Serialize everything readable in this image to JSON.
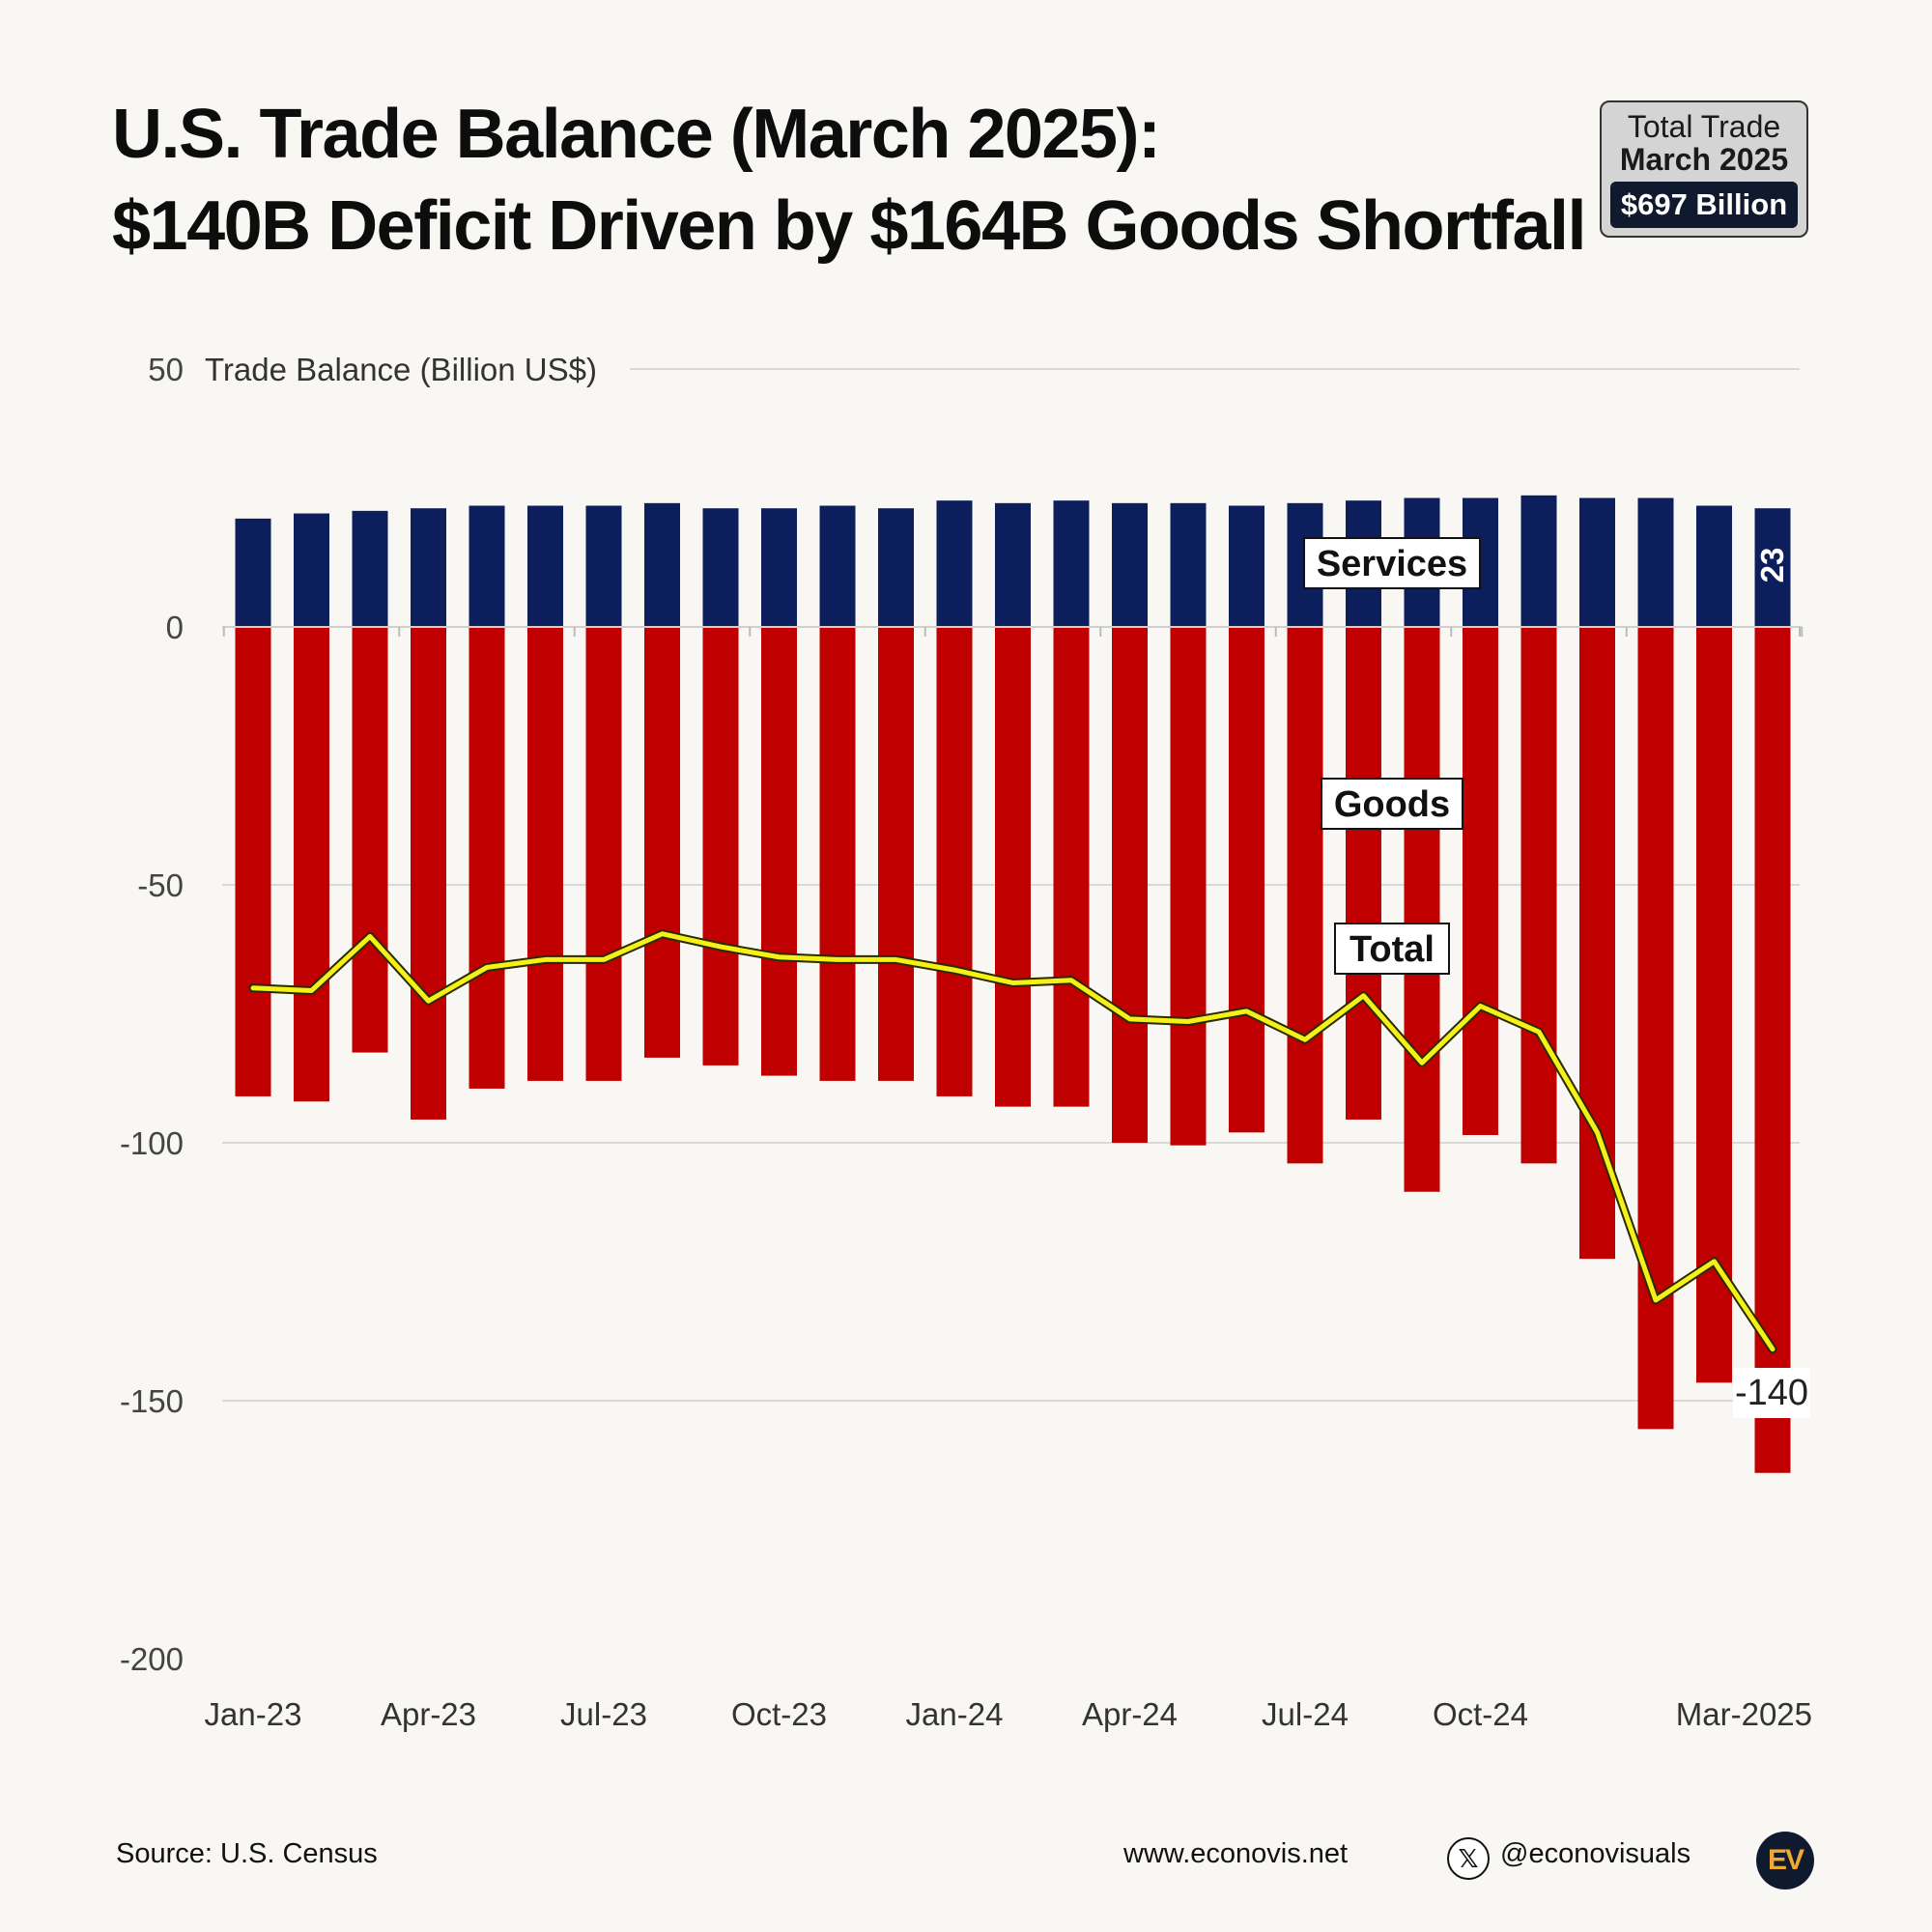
{
  "header": {
    "title_line1": "U.S. Trade Balance (March 2025):",
    "title_line2": "$140B Deficit Driven by $164B Goods Shortfall"
  },
  "badge": {
    "line1": "Total Trade",
    "line2": "March 2025",
    "value": "$697 Billion"
  },
  "footer": {
    "source": "Source: U.S. Census",
    "website": "www.econovis.net",
    "handle": "@econovisuals",
    "logo_text": "EV"
  },
  "colors": {
    "services": "#0c1f5c",
    "goods": "#c00000",
    "total": "#f5f018",
    "grid": "#d9d9d9",
    "background": "#f8f7f3"
  },
  "chart_data": {
    "type": "bar",
    "stacked": true,
    "ylabel": "Trade Balance (Billion US$)",
    "ylim": [
      -200,
      50
    ],
    "yticks": [
      50,
      0,
      -50,
      -100,
      -150,
      -200
    ],
    "grid": true,
    "categories": [
      "Jan-23",
      "Feb-23",
      "Mar-23",
      "Apr-23",
      "May-23",
      "Jun-23",
      "Jul-23",
      "Aug-23",
      "Sep-23",
      "Oct-23",
      "Nov-23",
      "Dec-23",
      "Jan-24",
      "Feb-24",
      "Mar-24",
      "Apr-24",
      "May-24",
      "Jun-24",
      "Jul-24",
      "Aug-24",
      "Sep-24",
      "Oct-24",
      "Nov-24",
      "Dec-24",
      "Jan-25",
      "Feb-25",
      "Mar-2025"
    ],
    "x_tick_labels": [
      {
        "index": 0,
        "label": "Jan-23"
      },
      {
        "index": 3,
        "label": "Apr-23"
      },
      {
        "index": 6,
        "label": "Jul-23"
      },
      {
        "index": 9,
        "label": "Oct-23"
      },
      {
        "index": 12,
        "label": "Jan-24"
      },
      {
        "index": 15,
        "label": "Apr-24"
      },
      {
        "index": 18,
        "label": "Jul-24"
      },
      {
        "index": 21,
        "label": "Oct-24"
      },
      {
        "index": 26,
        "label": "Mar-2025"
      }
    ],
    "series": [
      {
        "name": "Services",
        "kind": "bar",
        "values": [
          21,
          22,
          22.5,
          23,
          23.5,
          23.5,
          23.5,
          24,
          23,
          23,
          23.5,
          23,
          24.5,
          24,
          24.5,
          24,
          24,
          23.5,
          24,
          24.5,
          25,
          25,
          25.5,
          25,
          25,
          23.5,
          23
        ]
      },
      {
        "name": "Goods",
        "kind": "bar",
        "values": [
          -91,
          -92,
          -82.5,
          -95.5,
          -89.5,
          -88,
          -88,
          -83.5,
          -85,
          -87,
          -88,
          -88,
          -91,
          -93,
          -93,
          -100,
          -100.5,
          -98,
          -104,
          -95.5,
          -109.5,
          -98.5,
          -104,
          -122.5,
          -155.5,
          -146.5,
          -164
        ]
      },
      {
        "name": "Total",
        "kind": "line",
        "values": [
          -70,
          -70.5,
          -60,
          -72.5,
          -66,
          -64.5,
          -64.5,
          -59.5,
          -62,
          -64,
          -64.5,
          -64.5,
          -66.5,
          -69,
          -68.5,
          -76,
          -76.5,
          -74.5,
          -80,
          -71.5,
          -84.5,
          -73.5,
          -78.5,
          -98,
          -130.5,
          -123,
          -140
        ]
      }
    ],
    "annotations": {
      "services_last": "23",
      "goods_last": "-164",
      "total_last": "-140"
    }
  }
}
